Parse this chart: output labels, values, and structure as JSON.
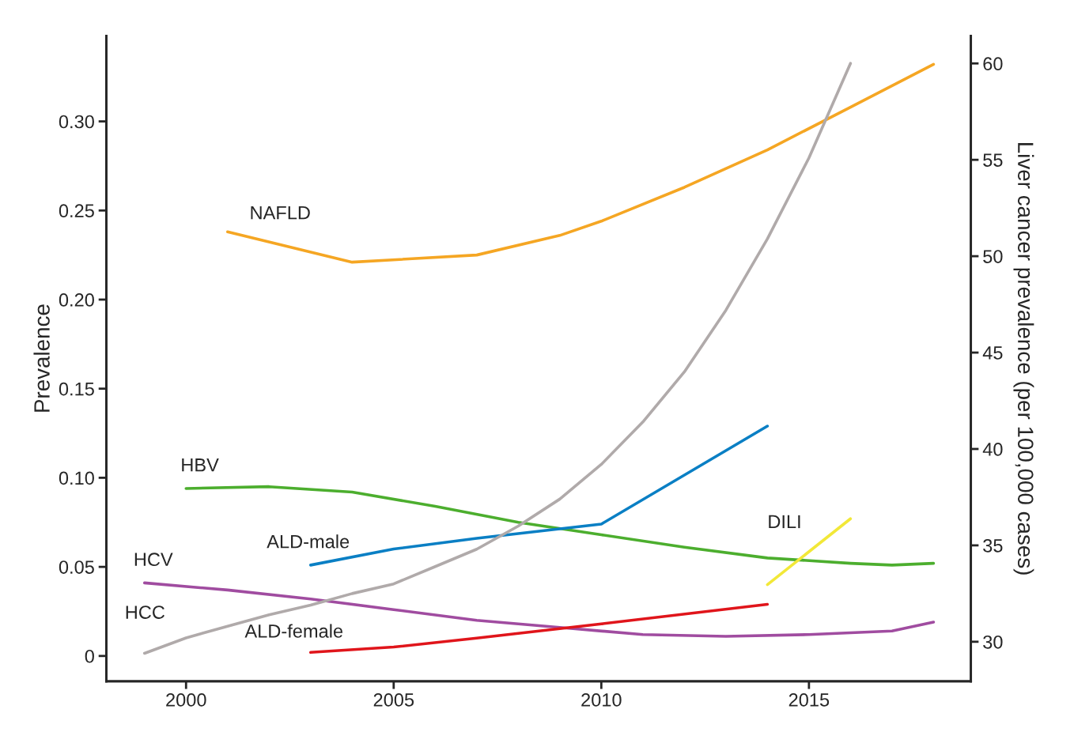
{
  "chart_data": {
    "type": "line",
    "ylabel": "Prevalence",
    "y2label": "Liver cancer prevalence (per 100,000 cases)",
    "xlim": [
      1998.08,
      2018.9
    ],
    "xticks": [
      2000,
      2005,
      2010,
      2015
    ],
    "ylim": [
      -0.0142,
      0.348
    ],
    "yticks": [
      0,
      0.05,
      {
        "value": 0.1,
        "label": "0.10"
      },
      0.15,
      {
        "value": 0.2,
        "label": "0.20"
      },
      0.25,
      {
        "value": 0.3,
        "label": "0.30"
      }
    ],
    "y2lim": [
      27.95,
      61.43
    ],
    "y2ticks": [
      30,
      35,
      40,
      45,
      50,
      55,
      60
    ],
    "grid": false,
    "legend": false,
    "marker": "none",
    "line_style": "solid",
    "series": [
      {
        "name": "NAFLD",
        "color": "#f5a623",
        "x": [
          2001,
          2004,
          2007,
          2009,
          2010,
          2012,
          2014,
          2016,
          2018
        ],
        "values": [
          0.238,
          0.221,
          0.225,
          0.236,
          0.244,
          0.263,
          0.284,
          0.308,
          0.332
        ]
      },
      {
        "name": "HCC",
        "color": "#b0aaaa",
        "axis": "y2",
        "x": [
          1999,
          2000,
          2001,
          2002,
          2003,
          2004,
          2005,
          2006,
          2007,
          2008,
          2009,
          2010,
          2011,
          2012,
          2013,
          2014,
          2015,
          2016
        ],
        "values": [
          29.4,
          30.2,
          30.8,
          31.4,
          31.9,
          32.5,
          33.0,
          33.9,
          34.8,
          36.0,
          37.4,
          39.2,
          41.4,
          44.0,
          47.2,
          50.9,
          55.1,
          60.0
        ]
      },
      {
        "name": "HBV",
        "color": "#4cae2e",
        "x": [
          2000,
          2002,
          2004,
          2006,
          2008,
          2010,
          2012,
          2014,
          2016,
          2017,
          2018
        ],
        "values": [
          0.094,
          0.095,
          0.092,
          0.084,
          0.075,
          0.068,
          0.061,
          0.055,
          0.052,
          0.051,
          0.052
        ]
      },
      {
        "name": "ALD-male",
        "color": "#0a7fc4",
        "x": [
          2003,
          2005,
          2007,
          2010,
          2014
        ],
        "values": [
          0.051,
          0.06,
          0.066,
          0.074,
          0.129
        ]
      },
      {
        "name": "DILI",
        "color": "#f2e838",
        "x": [
          2014,
          2016
        ],
        "values": [
          0.04,
          0.077
        ]
      },
      {
        "name": "HCV",
        "color": "#a04ca0",
        "x": [
          1999,
          2001,
          2003,
          2005,
          2007,
          2009,
          2011,
          2013,
          2015,
          2017,
          2018
        ],
        "values": [
          0.041,
          0.037,
          0.032,
          0.026,
          0.02,
          0.016,
          0.012,
          0.011,
          0.012,
          0.014,
          0.019
        ]
      },
      {
        "name": "ALD-female",
        "color": "#e0151b",
        "x": [
          2003,
          2005,
          2007,
          2010,
          2014
        ],
        "values": [
          0.002,
          0.005,
          0.01,
          0.018,
          0.029
        ]
      }
    ]
  }
}
